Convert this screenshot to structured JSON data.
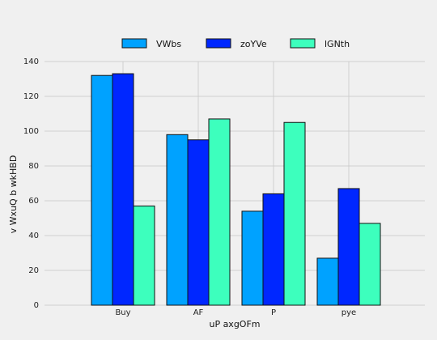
{
  "chart_data": {
    "type": "bar",
    "title": "",
    "xlabel": "uP axgOFm",
    "ylabel": "v WxuQ b wkHBD",
    "categories": [
      "Buy",
      "AF",
      "P",
      "pye"
    ],
    "series": [
      {
        "name": "VWbs",
        "values": [
          132,
          98,
          54,
          27
        ],
        "color": "#00a2ff"
      },
      {
        "name": "zoYVe",
        "values": [
          133,
          95,
          64,
          67
        ],
        "color": "#0027ff"
      },
      {
        "name": "lGNth",
        "values": [
          57,
          107,
          105,
          47
        ],
        "color": "#3dffbd"
      }
    ],
    "ylim": [
      0,
      140
    ],
    "yticks": [
      0,
      20,
      40,
      60,
      80,
      100,
      120,
      140
    ],
    "grid": true,
    "legend_position": "top-center"
  }
}
